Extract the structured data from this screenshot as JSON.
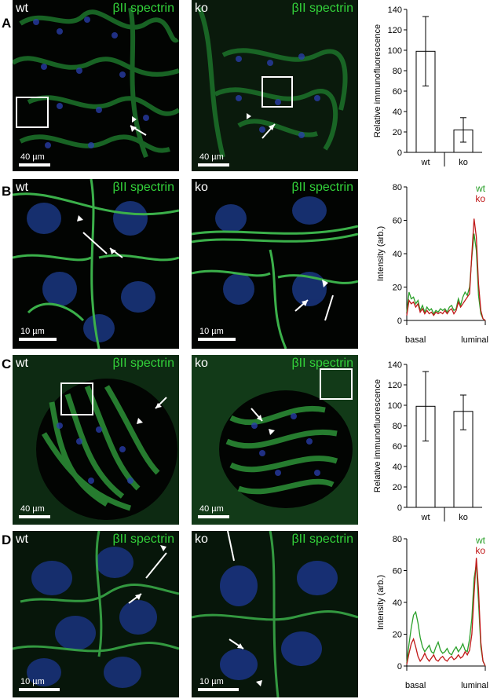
{
  "rows": [
    {
      "label": "A",
      "wt_label": "wt",
      "ko_label": "ko",
      "stain": "βII spectrin",
      "scale": "40 µm"
    },
    {
      "label": "B",
      "wt_label": "wt",
      "ko_label": "ko",
      "stain": "βII spectrin",
      "scale": "10 µm"
    },
    {
      "label": "C",
      "wt_label": "wt",
      "ko_label": "ko",
      "stain": "βII spectrin",
      "scale": "40 µm"
    },
    {
      "label": "D",
      "wt_label": "wt",
      "ko_label": "ko",
      "stain": "βII spectrin",
      "scale": "10 µm"
    }
  ],
  "chart_data": [
    {
      "type": "bar",
      "panel": "A",
      "categories": [
        "wt",
        "ko"
      ],
      "values": [
        99,
        22
      ],
      "error_low": [
        65,
        10
      ],
      "error_high": [
        133,
        34
      ],
      "ylabel": "Relative immunofluorescence",
      "ylim": [
        0,
        140
      ],
      "yticks": [
        0,
        20,
        40,
        60,
        80,
        100,
        120,
        140
      ]
    },
    {
      "type": "line",
      "panel": "B",
      "xlabels": [
        "basal",
        "luminal"
      ],
      "ylabel": "Intensity (arb.)",
      "ylim": [
        0,
        80
      ],
      "yticks": [
        0,
        20,
        40,
        60,
        80
      ],
      "legend": "top-right",
      "series": [
        {
          "name": "wt",
          "color": "#2aa02a",
          "values": [
            5,
            17,
            13,
            14,
            10,
            12,
            6,
            9,
            5,
            8,
            6,
            7,
            4,
            6,
            5,
            7,
            6,
            7,
            5,
            8,
            9,
            6,
            7,
            13,
            9,
            14,
            17,
            15,
            20,
            38,
            52,
            42,
            15,
            4,
            1,
            0
          ]
        },
        {
          "name": "ko",
          "color": "#c01818",
          "values": [
            3,
            12,
            10,
            11,
            8,
            10,
            5,
            7,
            4,
            6,
            4,
            5,
            3,
            5,
            4,
            5,
            4,
            6,
            4,
            6,
            7,
            4,
            6,
            11,
            8,
            10,
            12,
            14,
            16,
            40,
            61,
            50,
            22,
            6,
            1,
            0
          ]
        }
      ]
    },
    {
      "type": "bar",
      "panel": "C",
      "categories": [
        "wt",
        "ko"
      ],
      "values": [
        99,
        94
      ],
      "error_low": [
        65,
        76
      ],
      "error_high": [
        133,
        110
      ],
      "ylabel": "Relative immunofluorescence",
      "ylim": [
        0,
        140
      ],
      "yticks": [
        0,
        20,
        40,
        60,
        80,
        100,
        120,
        140
      ]
    },
    {
      "type": "line",
      "panel": "D",
      "xlabels": [
        "basal",
        "luminal"
      ],
      "ylabel": "Intensity (arb.)",
      "ylim": [
        0,
        80
      ],
      "yticks": [
        0,
        20,
        40,
        60,
        80
      ],
      "legend": "top-right",
      "series": [
        {
          "name": "wt",
          "color": "#2aa02a",
          "values": [
            2,
            14,
            24,
            32,
            34,
            27,
            18,
            12,
            9,
            11,
            13,
            9,
            8,
            12,
            15,
            10,
            8,
            9,
            11,
            8,
            7,
            10,
            12,
            9,
            11,
            14,
            10,
            9,
            17,
            30,
            55,
            64,
            40,
            12,
            3,
            0
          ]
        },
        {
          "name": "ko",
          "color": "#c01818",
          "values": [
            1,
            8,
            14,
            17,
            12,
            6,
            3,
            5,
            8,
            5,
            3,
            5,
            7,
            4,
            3,
            5,
            6,
            4,
            3,
            5,
            6,
            4,
            5,
            7,
            5,
            6,
            9,
            7,
            10,
            20,
            45,
            68,
            48,
            15,
            3,
            0
          ]
        }
      ]
    }
  ]
}
